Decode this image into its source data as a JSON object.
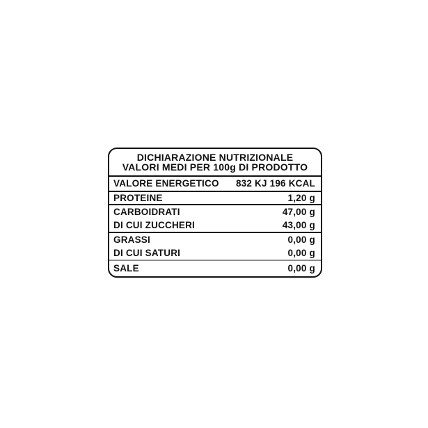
{
  "label": {
    "header": {
      "line1": "DICHIARAZIONE NUTRIZIONALE",
      "line2": "VALORI MEDI PER 100g DI PRODOTTO"
    },
    "rows": [
      {
        "name": "VALORE ENERGETICO",
        "value": "832 KJ 196 KCAL"
      },
      {
        "name": "PROTEINE",
        "value": "1,20 g"
      },
      {
        "name": "CARBOIDRATI",
        "value": "47,00 g"
      },
      {
        "name": "DI CUI ZUCCHERI",
        "value": "43,00 g"
      },
      {
        "name": "GRASSI",
        "value": "0,00 g"
      },
      {
        "name": "DI CUI SATURI",
        "value": "0,00 g"
      },
      {
        "name": "SALE",
        "value": "0,00 g"
      }
    ],
    "colors": {
      "text": "#121212",
      "border": "#121212",
      "light_rule": "#8c8c8c",
      "background": "#ffffff"
    }
  }
}
